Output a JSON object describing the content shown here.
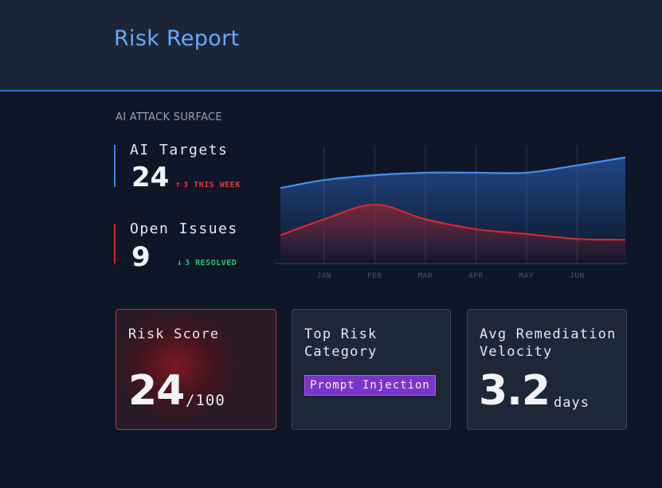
{
  "header": {
    "title": "Risk Report"
  },
  "section": {
    "label": "AI ATTACK SURFACE"
  },
  "metrics": {
    "targets": {
      "label": "AI Targets",
      "value": "24",
      "delta": "3 THIS WEEK",
      "delta_dir": "up"
    },
    "issues": {
      "label": "Open Issues",
      "value": "9",
      "delta": "3 RESOLVED",
      "delta_dir": "down"
    }
  },
  "chart_data": {
    "type": "area",
    "title": "",
    "categories": [
      "JAN",
      "FEB",
      "MAR",
      "APR",
      "MAY",
      "JUN"
    ],
    "series": [
      {
        "name": "AI Targets",
        "color": "#4a8ff0",
        "values": [
          21,
          22,
          22.5,
          22.5,
          22.5,
          24
        ]
      },
      {
        "name": "Open Issues",
        "color": "#d02a33",
        "values": [
          13,
          16,
          13,
          11,
          10,
          9
        ]
      }
    ],
    "ylim": [
      4,
      28
    ],
    "grid": true
  },
  "cards": {
    "risk": {
      "title": "Risk Score",
      "value": "24",
      "suffix": "/100"
    },
    "top": {
      "title_line1": "Top Risk",
      "title_line2": "Category",
      "badge": "Prompt Injection"
    },
    "velocity": {
      "title_line1": "Avg Remediation",
      "title_line2": "Velocity",
      "value": "3.2",
      "unit": "days"
    }
  },
  "colors": {
    "accent": "#6aa6ff",
    "danger": "#e0353d",
    "success": "#22c27a",
    "badge": "#7a36c8"
  }
}
